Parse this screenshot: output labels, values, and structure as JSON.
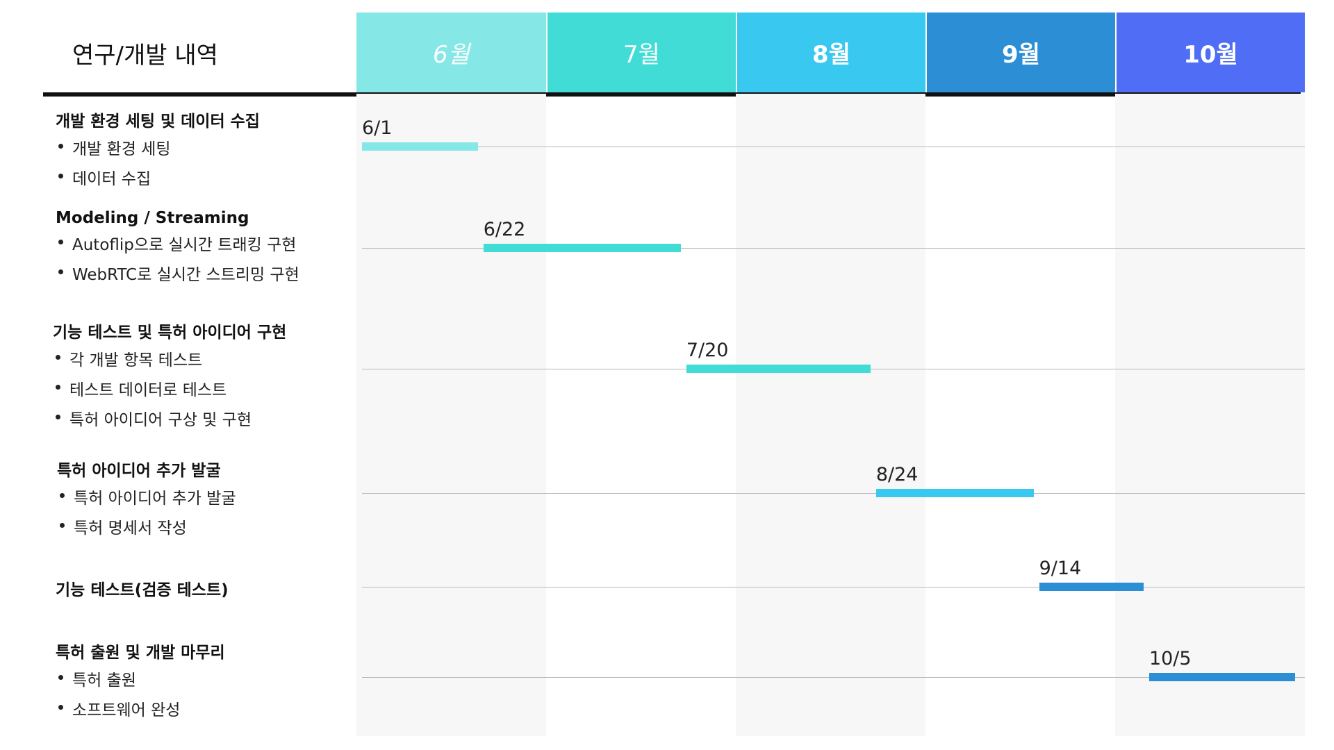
{
  "chart_data": {
    "type": "gantt",
    "title": "연구/개발 내역",
    "months": [
      {
        "label": "6월",
        "color": "#86e8e6",
        "style": "italic"
      },
      {
        "label": "7월",
        "color": "#41dcd6",
        "style": "plain"
      },
      {
        "label": "8월",
        "color": "#38c8f0",
        "style": "bold"
      },
      {
        "label": "9월",
        "color": "#2c8fd5",
        "style": "bold"
      },
      {
        "label": "10월",
        "color": "#4f6ef5",
        "style": "bold"
      }
    ],
    "tasks": [
      {
        "title": "개발 환경 세팅 및 데이터 수집",
        "items": [
          "개발 환경 세팅",
          "데이터 수집"
        ],
        "start_label": "6/1",
        "start": 0.0,
        "end": 0.64,
        "color": "#86e8e6"
      },
      {
        "title": "Modeling / Streaming",
        "items": [
          "Autoflip으로 실시간 트래킹 구현",
          "WebRTC로 실시간 스트리밍 구현"
        ],
        "start_label": "6/22",
        "start": 0.64,
        "end": 1.71,
        "color": "#41dcd6"
      },
      {
        "title": "기능 테스트 및 특허 아이디어 구현",
        "items": [
          "각 개발 항목 테스트",
          "테스트 데이터로 테스트",
          "특허 아이디어 구상 및 구현"
        ],
        "start_label": "7/20",
        "start": 1.71,
        "end": 2.71,
        "color": "#41dcd6"
      },
      {
        "title": "특허 아이디어 추가 발굴",
        "items": [
          "특허 아이디어 추가 발굴",
          "특허 명세서 작성"
        ],
        "start_label": "8/24",
        "start": 2.71,
        "end": 3.57,
        "color": "#38c8f0"
      },
      {
        "title": "기능 테스트(검증 테스트)",
        "items": [],
        "start_label": "9/14",
        "start": 3.57,
        "end": 4.15,
        "color": "#2c8fd5"
      },
      {
        "title": "특허 출원 및 개발 마무리",
        "items": [
          "특허 출원",
          "소프트웨어 완성"
        ],
        "start_label": "10/5",
        "start": 4.15,
        "end": 4.95,
        "color": "#2c8fd5"
      }
    ]
  }
}
